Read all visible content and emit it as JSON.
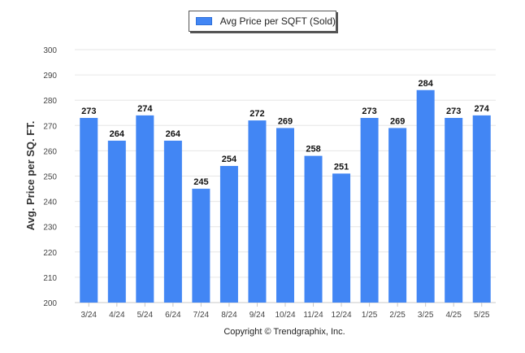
{
  "legend": {
    "label": "Avg Price per SQFT (Sold)"
  },
  "footer": {
    "copyright": "Copyright © Trendgraphix, Inc."
  },
  "chart_data": {
    "type": "bar",
    "title": "",
    "xlabel": "",
    "ylabel": "Avg. Price per SQ. FT.",
    "ylim": [
      200,
      300
    ],
    "yticks": [
      200,
      210,
      220,
      230,
      240,
      250,
      260,
      270,
      280,
      290,
      300
    ],
    "grid": true,
    "legend_position": "top-center",
    "bar_color": "#4286f4",
    "categories": [
      "3/24",
      "4/24",
      "5/24",
      "6/24",
      "7/24",
      "8/24",
      "9/24",
      "10/24",
      "11/24",
      "12/24",
      "1/25",
      "2/25",
      "3/25",
      "4/25",
      "5/25"
    ],
    "series": [
      {
        "name": "Avg Price per SQFT (Sold)",
        "values": [
          273,
          264,
          274,
          264,
          245,
          254,
          272,
          269,
          258,
          251,
          273,
          269,
          284,
          273,
          274
        ]
      }
    ]
  }
}
